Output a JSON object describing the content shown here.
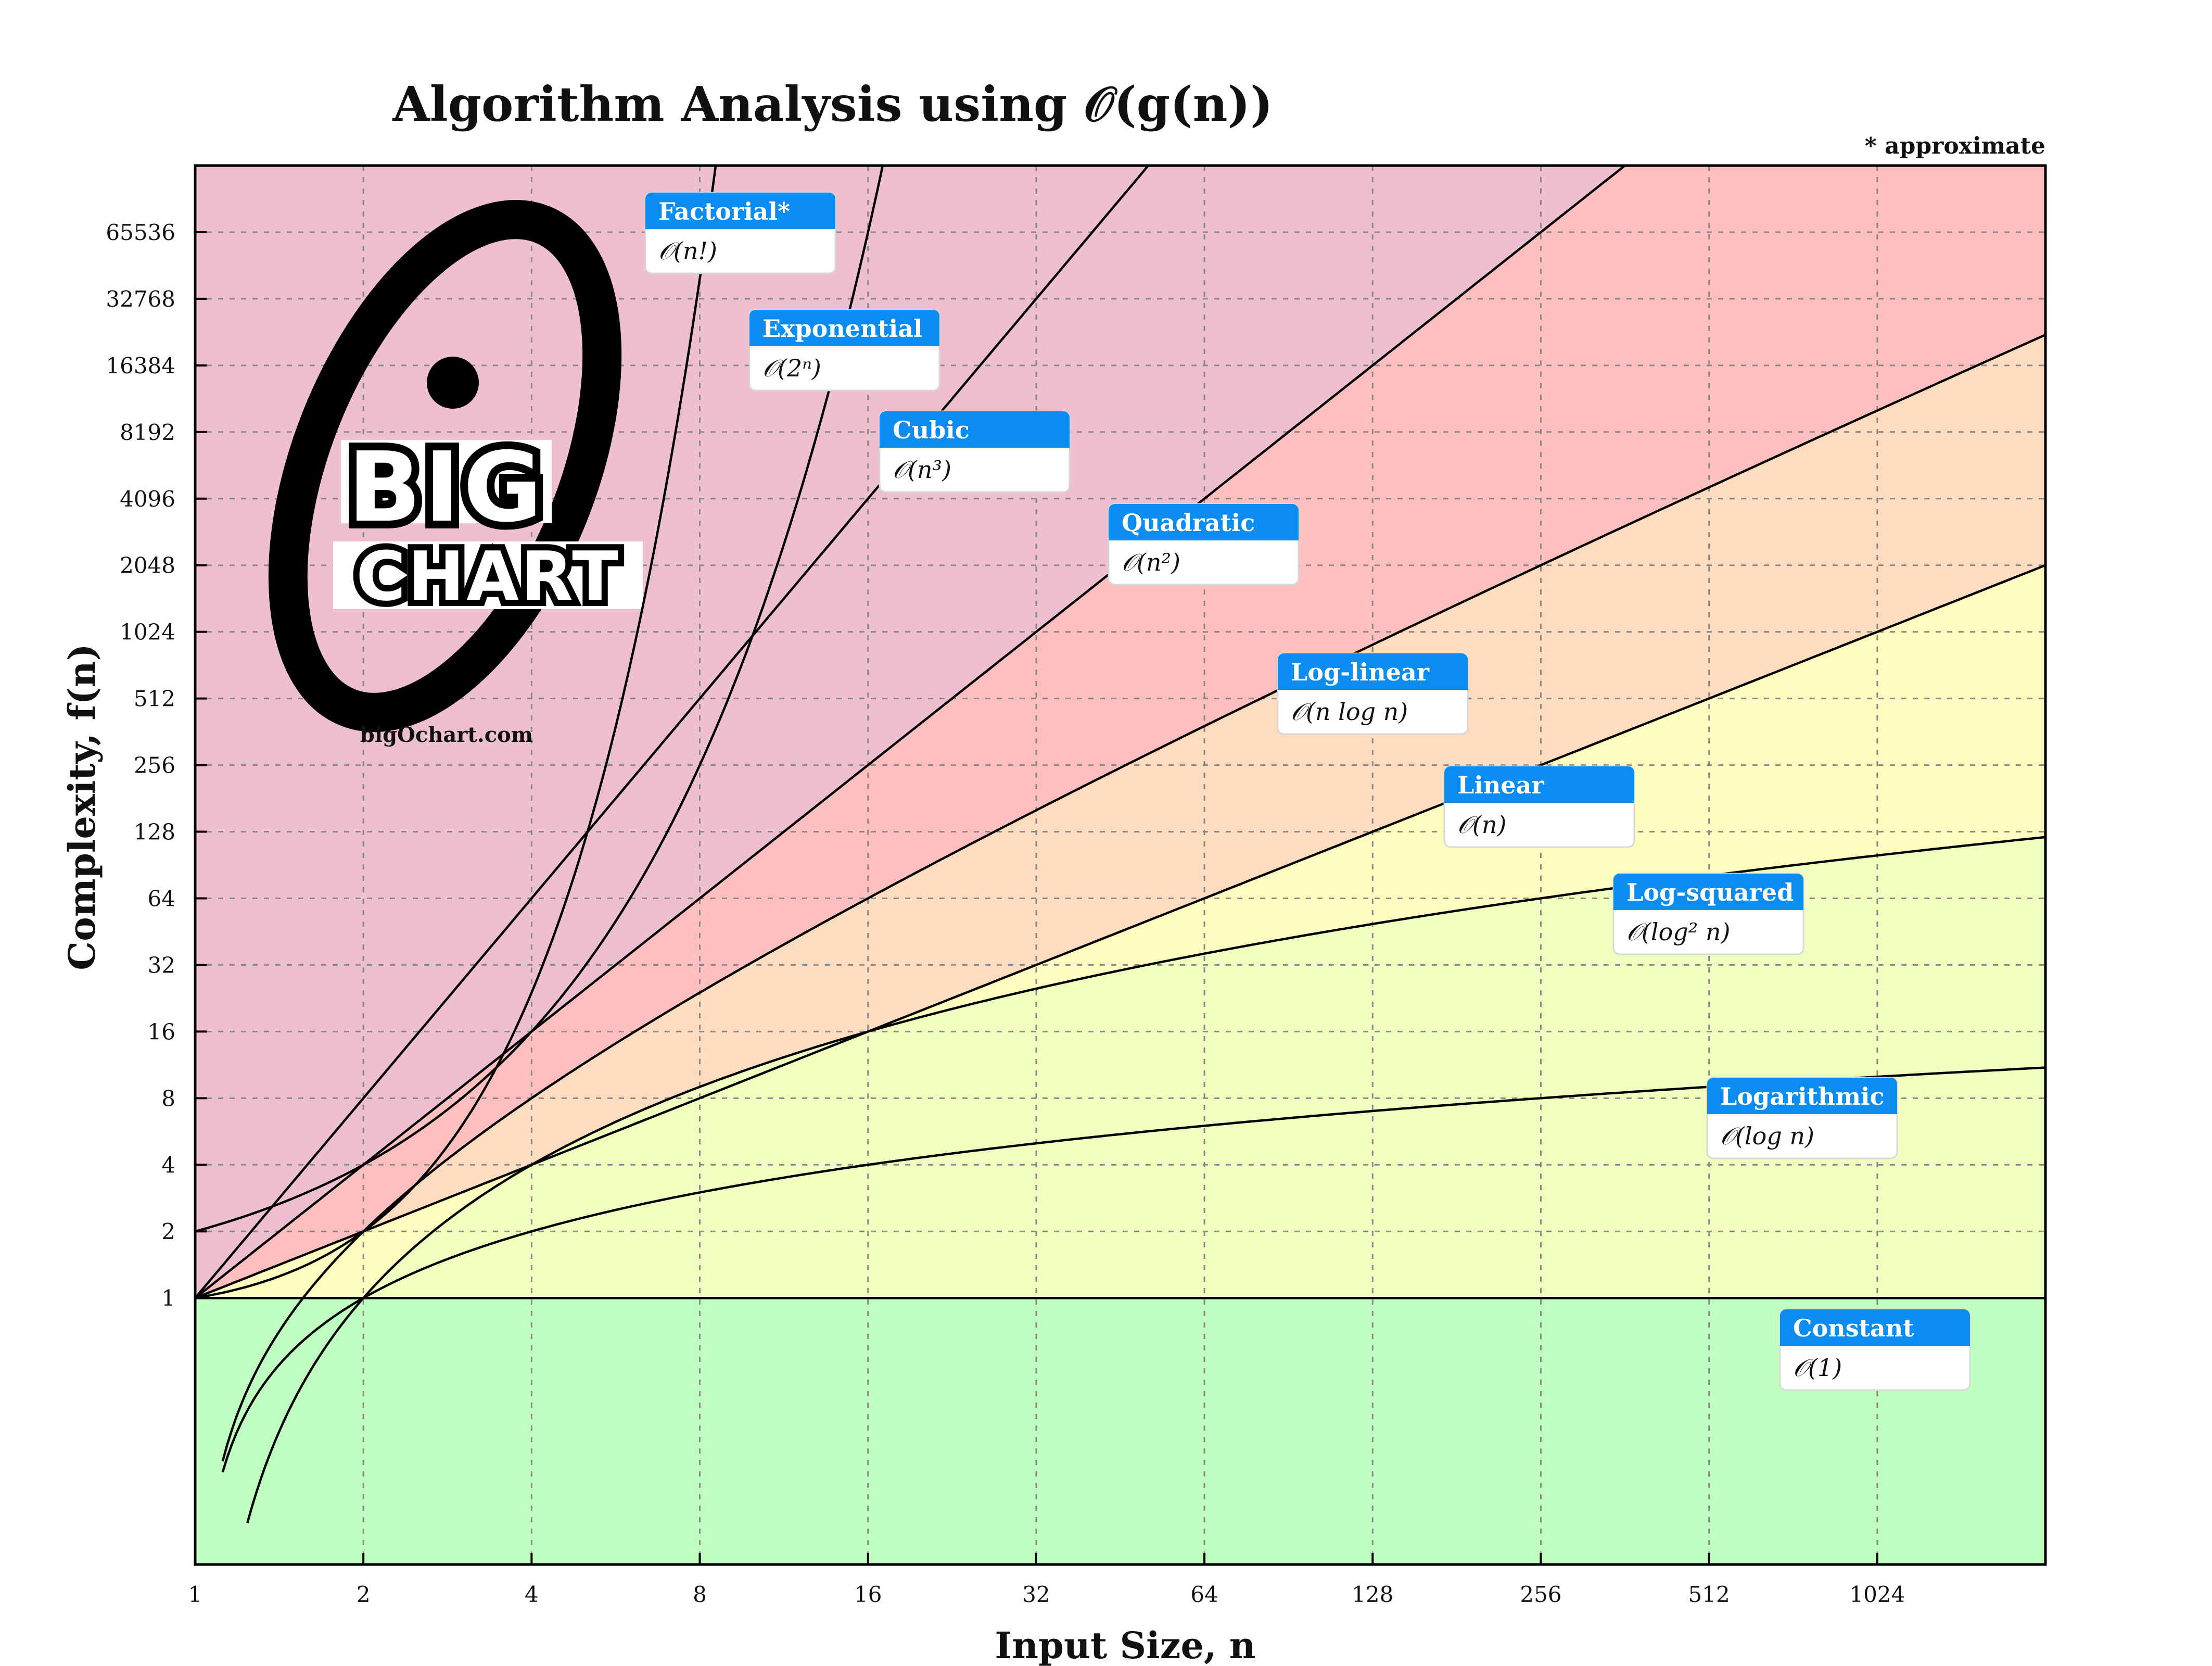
{
  "chart_data": {
    "type": "line",
    "title": "Algorithm Analysis using 𝒪(g(n))",
    "note": "* approximate",
    "xlabel": "Input Size, n",
    "ylabel": "Complexity, f(n)",
    "x_scale": "log2",
    "y_scale": "log2",
    "xlim": [
      1,
      2048
    ],
    "ylim": [
      0.0625,
      131072
    ],
    "x_ticks": [
      1,
      2,
      4,
      8,
      16,
      32,
      64,
      128,
      256,
      512,
      1024
    ],
    "x_tick_labels": [
      "1",
      "2",
      "4",
      "8",
      "16",
      "32",
      "64",
      "128",
      "256",
      "512",
      "1024"
    ],
    "y_ticks": [
      1,
      2,
      4,
      8,
      16,
      32,
      64,
      128,
      256,
      512,
      1024,
      2048,
      4096,
      8192,
      16384,
      32768,
      65536
    ],
    "y_tick_labels": [
      "1",
      "2",
      "4",
      "8",
      "16",
      "32",
      "64",
      "128",
      "256",
      "512",
      "1024",
      "2048",
      "4096",
      "8192",
      "16384",
      "32768",
      "65536"
    ],
    "grid": true,
    "series": [
      {
        "name": "Factorial*",
        "expr": "𝒪(n!)",
        "func": "factorial",
        "fill": "#eebfcf"
      },
      {
        "name": "Exponential",
        "expr": "𝒪(2ⁿ)",
        "func": "exponential",
        "fill": "#eebfcf"
      },
      {
        "name": "Cubic",
        "expr": "𝒪(n³)",
        "func": "cubic",
        "fill": "#eebfcf"
      },
      {
        "name": "Quadratic",
        "expr": "𝒪(n²)",
        "func": "quadratic",
        "fill": "#ffbfbf"
      },
      {
        "name": "Log-linear",
        "expr": "𝒪(n log n)",
        "func": "loglinear",
        "fill": "#ffdcbf"
      },
      {
        "name": "Linear",
        "expr": "𝒪(n)",
        "func": "linear",
        "fill": "#fffcbf"
      },
      {
        "name": "Log-squared",
        "expr": "𝒪(log² n)",
        "func": "logsquared",
        "fill": "#efffbf"
      },
      {
        "name": "Logarithmic",
        "expr": "𝒪(log n)",
        "func": "logarithmic",
        "fill": "#efffbf"
      },
      {
        "name": "Constant",
        "expr": "𝒪(1)",
        "func": "constant",
        "fill": "#bfffbf"
      }
    ]
  },
  "logo": {
    "word1": "BIG",
    "word2": "CHART",
    "url": "bigOchart.com"
  },
  "colors": {
    "label_header": "#0a8cf0",
    "label_border": "#d8d8d8"
  }
}
